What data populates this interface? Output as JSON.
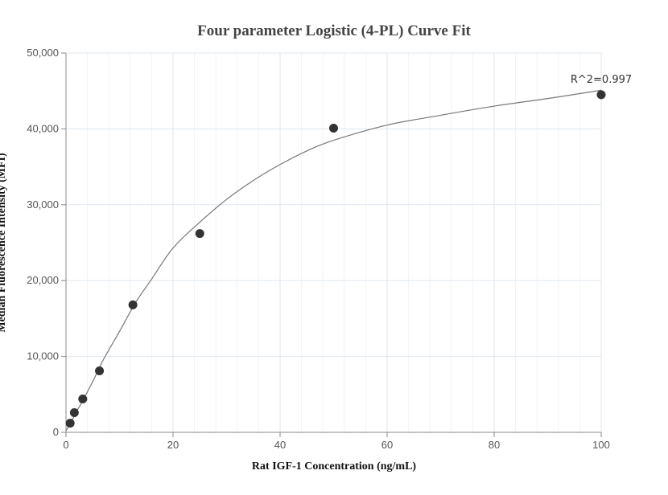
{
  "chart_data": {
    "type": "scatter",
    "title": "Four parameter Logistic (4-PL) Curve Fit",
    "xlabel": "Rat IGF-1 Concentration (ng/mL)",
    "ylabel": "Median Fluorescence Intensity (MFI)",
    "xlim": [
      0,
      100
    ],
    "ylim": [
      0,
      50000
    ],
    "x_ticks": [
      0,
      20,
      40,
      60,
      80,
      100
    ],
    "x_tick_labels": [
      "0",
      "20",
      "40",
      "60",
      "80",
      "100"
    ],
    "y_ticks": [
      0,
      10000,
      20000,
      30000,
      40000,
      50000
    ],
    "y_tick_labels": [
      "0",
      "10,000",
      "20,000",
      "30,000",
      "40,000",
      "50,000"
    ],
    "grid": true,
    "annotation": "R^2=0.997",
    "series": [
      {
        "x": [
          0.78,
          1.56,
          3.13,
          6.25,
          12.5,
          25,
          50,
          100
        ],
        "y": [
          1200,
          2600,
          4400,
          8100,
          16800,
          26200,
          40100,
          44500
        ]
      }
    ],
    "fit": {
      "x": [
        0,
        1,
        2,
        3,
        5,
        7,
        10,
        13,
        16,
        20,
        25,
        30,
        35,
        40,
        45,
        50,
        60,
        70,
        80,
        90,
        100
      ],
      "y": [
        200,
        1400,
        2800,
        4000,
        6700,
        9600,
        13300,
        17100,
        20200,
        24300,
        27700,
        30700,
        33200,
        35300,
        37100,
        38500,
        40500,
        41800,
        43000,
        44000,
        45100
      ]
    }
  }
}
